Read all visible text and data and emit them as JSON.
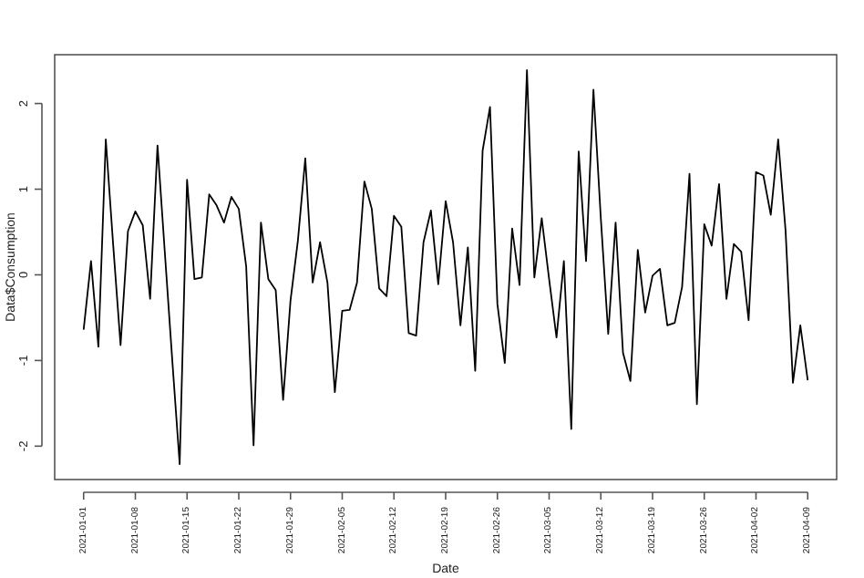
{
  "chart_data": {
    "type": "line",
    "xlabel": "Date",
    "ylabel": "Data$Consumption",
    "color": "#000000",
    "marker": "none",
    "line_style": "solid",
    "grid": false,
    "x": [
      "2021-01-01",
      "2021-01-02",
      "2021-01-03",
      "2021-01-04",
      "2021-01-05",
      "2021-01-06",
      "2021-01-07",
      "2021-01-08",
      "2021-01-09",
      "2021-01-10",
      "2021-01-11",
      "2021-01-12",
      "2021-01-13",
      "2021-01-14",
      "2021-01-15",
      "2021-01-16",
      "2021-01-17",
      "2021-01-18",
      "2021-01-19",
      "2021-01-20",
      "2021-01-21",
      "2021-01-22",
      "2021-01-23",
      "2021-01-24",
      "2021-01-25",
      "2021-01-26",
      "2021-01-27",
      "2021-01-28",
      "2021-01-29",
      "2021-01-30",
      "2021-01-31",
      "2021-02-01",
      "2021-02-02",
      "2021-02-03",
      "2021-02-04",
      "2021-02-05",
      "2021-02-06",
      "2021-02-07",
      "2021-02-08",
      "2021-02-09",
      "2021-02-10",
      "2021-02-11",
      "2021-02-12",
      "2021-02-13",
      "2021-02-14",
      "2021-02-15",
      "2021-02-16",
      "2021-02-17",
      "2021-02-18",
      "2021-02-19",
      "2021-02-20",
      "2021-02-21",
      "2021-02-22",
      "2021-02-23",
      "2021-02-24",
      "2021-02-25",
      "2021-02-26",
      "2021-02-27",
      "2021-02-28",
      "2021-03-01",
      "2021-03-02",
      "2021-03-03",
      "2021-03-04",
      "2021-03-05",
      "2021-03-06",
      "2021-03-07",
      "2021-03-08",
      "2021-03-09",
      "2021-03-10",
      "2021-03-11",
      "2021-03-12",
      "2021-03-13",
      "2021-03-14",
      "2021-03-15",
      "2021-03-16",
      "2021-03-17",
      "2021-03-18",
      "2021-03-19",
      "2021-03-20",
      "2021-03-21",
      "2021-03-22",
      "2021-03-23",
      "2021-03-24",
      "2021-03-25",
      "2021-03-26",
      "2021-03-27",
      "2021-03-28",
      "2021-03-29",
      "2021-03-30",
      "2021-03-31",
      "2021-04-01",
      "2021-04-02",
      "2021-04-03",
      "2021-04-04",
      "2021-04-05",
      "2021-04-06",
      "2021-04-07",
      "2021-04-08",
      "2021-04-09"
    ],
    "values": [
      -0.64,
      0.16,
      -0.84,
      1.58,
      0.35,
      -0.82,
      0.51,
      0.74,
      0.58,
      -0.28,
      1.51,
      0.25,
      -1.0,
      -2.21,
      1.11,
      -0.05,
      -0.03,
      0.94,
      0.81,
      0.61,
      0.91,
      0.77,
      0.1,
      -1.99,
      0.61,
      -0.05,
      -0.18,
      -1.46,
      -0.3,
      0.4,
      1.36,
      -0.09,
      0.38,
      -0.09,
      -1.37,
      -0.42,
      -0.41,
      -0.09,
      1.09,
      0.77,
      -0.16,
      -0.25,
      0.69,
      0.56,
      -0.68,
      -0.71,
      0.38,
      0.75,
      -0.11,
      0.86,
      0.38,
      -0.59,
      0.32,
      -1.12,
      1.45,
      1.96,
      -0.34,
      -1.03,
      0.54,
      -0.12,
      2.39,
      -0.03,
      0.66,
      -0.05,
      -0.73,
      0.16,
      -1.8,
      1.44,
      0.16,
      2.16,
      0.66,
      -0.69,
      0.61,
      -0.91,
      -1.24,
      0.29,
      -0.44,
      -0.01,
      0.07,
      -0.59,
      -0.56,
      -0.14,
      1.18,
      -1.51,
      0.59,
      0.34,
      1.06,
      -0.28,
      0.36,
      0.27,
      -0.53,
      1.2,
      1.16,
      0.7,
      1.58,
      0.52,
      -1.26,
      -0.59,
      -1.23
    ],
    "xlim": [
      "2020-12-28T02:00",
      "2021-04-12T22:00"
    ],
    "xticks": [
      "2021-01-01",
      "2021-01-08",
      "2021-01-15",
      "2021-01-22",
      "2021-01-29",
      "2021-02-05",
      "2021-02-12",
      "2021-02-19",
      "2021-02-26",
      "2021-03-05",
      "2021-03-12",
      "2021-03-19",
      "2021-03-26",
      "2021-04-02",
      "2021-04-09"
    ],
    "ylim": [
      -2.39,
      2.57
    ],
    "yticks": [
      -2,
      -1,
      0,
      1,
      2
    ]
  }
}
